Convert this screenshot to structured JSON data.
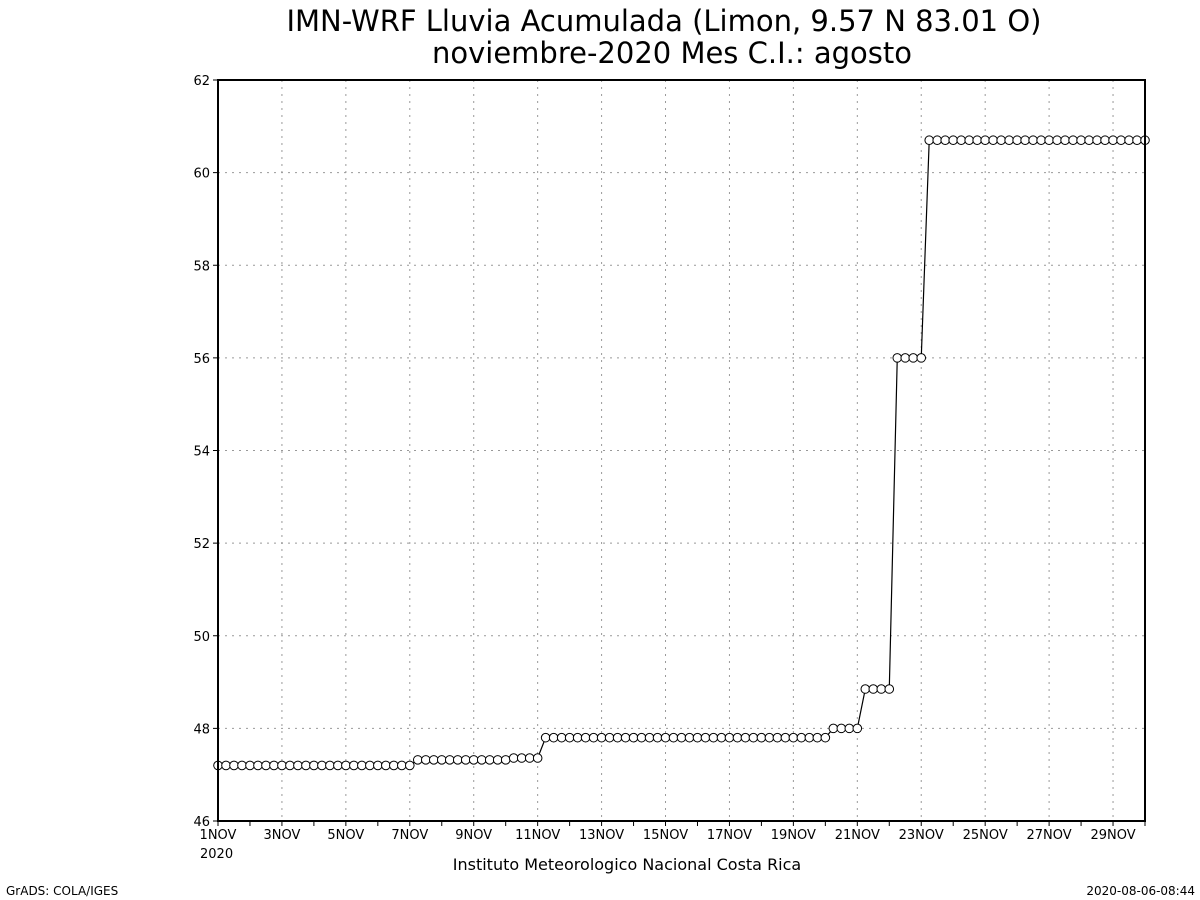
{
  "chart_data": {
    "type": "line",
    "title": "IMN-WRF  Lluvia Acumulada  (Limon, 9.57  N 83.01  O)",
    "subtitle": "noviembre-2020 Mes C.I.: agosto",
    "x_tick_labels": [
      "1NOV",
      "3NOV",
      "5NOV",
      "7NOV",
      "9NOV",
      "11NOV",
      "13NOV",
      "15NOV",
      "17NOV",
      "19NOV",
      "21NOV",
      "23NOV",
      "25NOV",
      "27NOV",
      "29NOV"
    ],
    "x_year_label": "2020",
    "xlim": [
      1,
      30
    ],
    "ylim": [
      46,
      62
    ],
    "y_ticks": [
      46,
      48,
      50,
      52,
      54,
      56,
      58,
      60,
      62
    ],
    "grid": true,
    "marker": "open-circle",
    "steps_per_day": 4,
    "series": [
      {
        "segments": [
          {
            "from_day": 1.0,
            "to_day": 7.0,
            "value": 47.2
          },
          {
            "from_day": 7.25,
            "to_day": 10.0,
            "value": 47.32
          },
          {
            "from_day": 10.25,
            "to_day": 11.0,
            "value": 47.36
          },
          {
            "from_day": 11.25,
            "to_day": 20.0,
            "value": 47.8
          },
          {
            "from_day": 20.25,
            "to_day": 21.0,
            "value": 48.0
          },
          {
            "from_day": 21.25,
            "to_day": 22.0,
            "value": 48.85
          },
          {
            "from_day": 22.25,
            "to_day": 23.0,
            "value": 56.0
          },
          {
            "from_day": 23.25,
            "to_day": 30.0,
            "value": 60.7
          }
        ]
      }
    ]
  },
  "footer": {
    "institution": "Instituto Meteorologico Nacional Costa Rica",
    "software": "GrADS: COLA/IGES",
    "timestamp": "2020-08-06-08:44"
  }
}
